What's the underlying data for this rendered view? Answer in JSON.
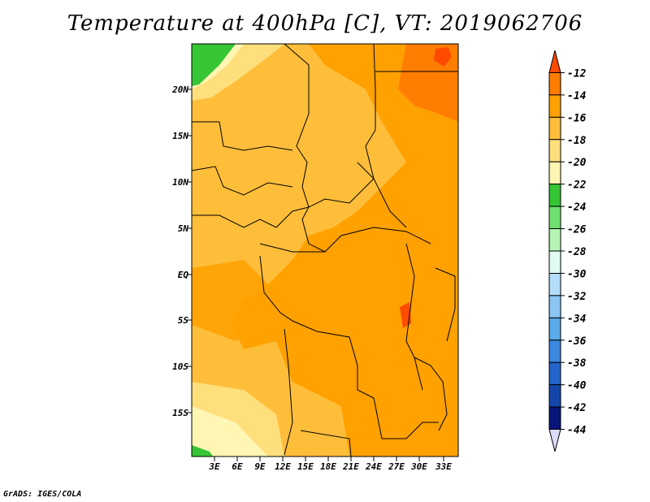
{
  "title": "Temperature at 400hPa [C], VT: 2019062706",
  "credit": "GrADS: IGES/COLA",
  "map": {
    "lon_ticks": [
      "3E",
      "6E",
      "9E",
      "12E",
      "15E",
      "18E",
      "21E",
      "24E",
      "27E",
      "30E",
      "33E"
    ],
    "lat_ticks": [
      "20N",
      "15N",
      "10N",
      "5N",
      "EQ",
      "5S",
      "10S",
      "15S"
    ]
  },
  "colorbar": {
    "labels": [
      "-12",
      "-14",
      "-16",
      "-18",
      "-20",
      "-22",
      "-24",
      "-26",
      "-28",
      "-30",
      "-32",
      "-34",
      "-36",
      "-38",
      "-40",
      "-42",
      "-44"
    ],
    "colors": [
      "#ff4b00",
      "#ff7d00",
      "#ffa100",
      "#ffbe3a",
      "#ffdf7c",
      "#fff6b4",
      "#35c535",
      "#70e070",
      "#b4f5b4",
      "#e1fbf1",
      "#b4def9",
      "#8ac5f4",
      "#5aa9eb",
      "#3a88e0",
      "#2465cc",
      "#1446aa",
      "#08157a",
      "#dcdcfa"
    ]
  },
  "colors": {
    "land": "#ffbe3a",
    "frame": "#000000"
  }
}
